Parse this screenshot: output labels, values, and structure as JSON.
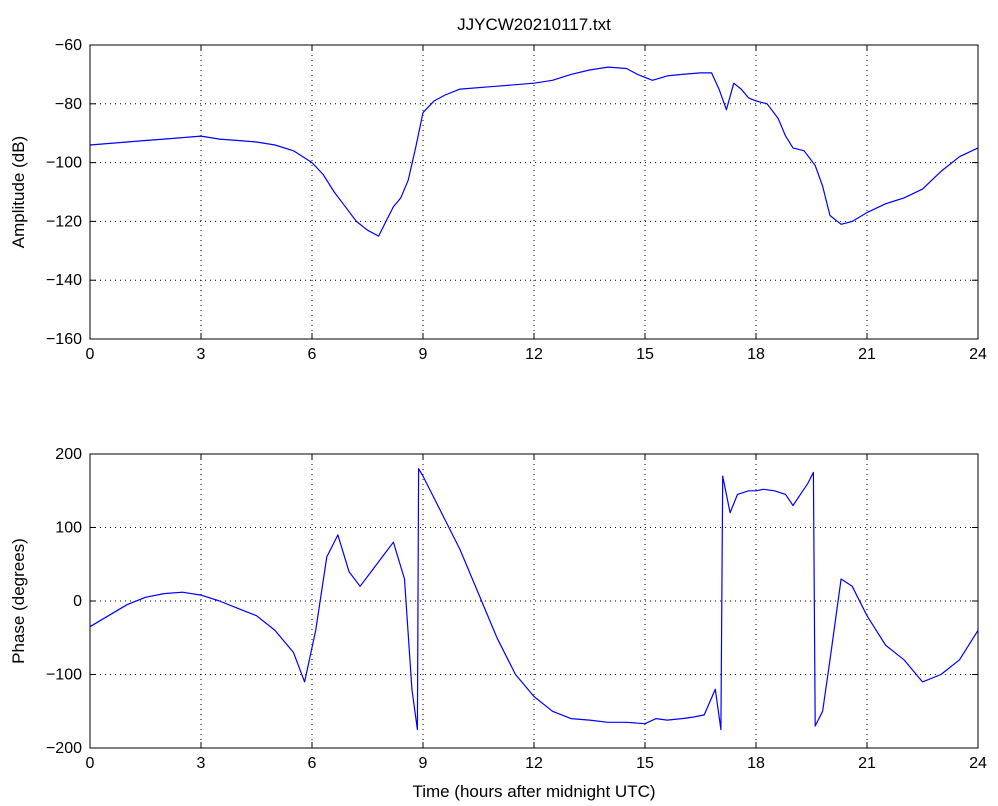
{
  "figure": {
    "title": "JJYCW20210117.txt",
    "xlabel": "Time (hours after midnight UTC)"
  },
  "chart_data": [
    {
      "type": "line",
      "title": "JJYCW20210117.txt",
      "xlabel": "",
      "ylabel": "Amplitude (dB)",
      "xlim": [
        0,
        24
      ],
      "ylim": [
        -160,
        -60
      ],
      "xticks": [
        0,
        3,
        6,
        9,
        12,
        15,
        18,
        21,
        24
      ],
      "yticks": [
        -160,
        -140,
        -120,
        -100,
        -80,
        -60
      ],
      "ytick_labels": [
        "−160",
        "−140",
        "−120",
        "−100",
        "−80",
        "−60"
      ],
      "grid": true,
      "line_color": "#0000ff",
      "series": [
        {
          "x": [
            0,
            0.5,
            1,
            1.5,
            2,
            2.5,
            3,
            3.5,
            4,
            4.5,
            5,
            5.5,
            6,
            6.3,
            6.6,
            6.9,
            7.2,
            7.5,
            7.8,
            8.0,
            8.2,
            8.4,
            8.6,
            8.8,
            9.0,
            9.3,
            9.6,
            10,
            11,
            12,
            12.5,
            13,
            13.5,
            14,
            14.5,
            14.8,
            15.2,
            15.6,
            16,
            16.5,
            16.8,
            17.0,
            17.2,
            17.4,
            17.6,
            17.8,
            18,
            18.3,
            18.6,
            18.8,
            19.0,
            19.3,
            19.6,
            19.8,
            20.0,
            20.3,
            20.6,
            21,
            21.5,
            22,
            22.5,
            23,
            23.5,
            24
          ],
          "y": [
            -94,
            -93.5,
            -93,
            -92.5,
            -92,
            -91.5,
            -91,
            -92,
            -92.5,
            -93,
            -94,
            -96,
            -100,
            -104,
            -110,
            -115,
            -120,
            -123,
            -125,
            -120,
            -115,
            -112,
            -106,
            -95,
            -83,
            -79,
            -77,
            -75,
            -74,
            -73,
            -72,
            -70,
            -68.5,
            -67.5,
            -68,
            -70,
            -72,
            -70.5,
            -70,
            -69.5,
            -69.5,
            -75,
            -82,
            -73,
            -75,
            -78,
            -79,
            -80,
            -85,
            -91,
            -95,
            -96,
            -101,
            -108,
            -118,
            -121,
            -120,
            -117,
            -114,
            -112,
            -109,
            -103,
            -98,
            -95
          ]
        }
      ]
    },
    {
      "type": "line",
      "title": "",
      "xlabel": "Time (hours after midnight UTC)",
      "ylabel": "Phase (degrees)",
      "xlim": [
        0,
        24
      ],
      "ylim": [
        -200,
        200
      ],
      "xticks": [
        0,
        3,
        6,
        9,
        12,
        15,
        18,
        21,
        24
      ],
      "yticks": [
        -200,
        -100,
        0,
        100,
        200
      ],
      "ytick_labels": [
        "−200",
        "−100",
        "0",
        "100",
        "200"
      ],
      "grid": true,
      "line_color": "#0000ff",
      "series": [
        {
          "x": [
            0,
            0.5,
            1,
            1.5,
            2,
            2.5,
            3,
            3.5,
            4,
            4.5,
            5,
            5.5,
            5.8,
            6.1,
            6.4,
            6.7,
            7.0,
            7.3,
            7.6,
            7.9,
            8.2,
            8.5,
            8.7,
            8.85,
            8.88,
            9.0,
            9.3,
            9.6,
            10,
            10.5,
            11,
            11.5,
            12,
            12.5,
            13,
            13.5,
            14,
            14.5,
            15,
            15.3,
            15.6,
            16,
            16.3,
            16.6,
            16.9,
            17.05,
            17.1,
            17.3,
            17.5,
            17.8,
            18,
            18.2,
            18.5,
            18.8,
            19.0,
            19.2,
            19.4,
            19.55,
            19.6,
            19.8,
            20.0,
            20.3,
            20.6,
            21,
            21.5,
            22,
            22.5,
            23,
            23.5,
            24
          ],
          "y": [
            -35,
            -20,
            -5,
            5,
            10,
            12,
            8,
            0,
            -10,
            -20,
            -40,
            -70,
            -110,
            -40,
            60,
            90,
            40,
            20,
            40,
            60,
            80,
            30,
            -120,
            -175,
            180,
            170,
            140,
            110,
            70,
            10,
            -50,
            -100,
            -130,
            -150,
            -160,
            -162,
            -165,
            -165,
            -167,
            -160,
            -162,
            -160,
            -158,
            -155,
            -120,
            -175,
            170,
            120,
            145,
            150,
            150,
            152,
            150,
            145,
            130,
            145,
            160,
            175,
            -170,
            -150,
            -80,
            30,
            20,
            -20,
            -60,
            -80,
            -110,
            -100,
            -80,
            -40
          ]
        }
      ]
    }
  ]
}
